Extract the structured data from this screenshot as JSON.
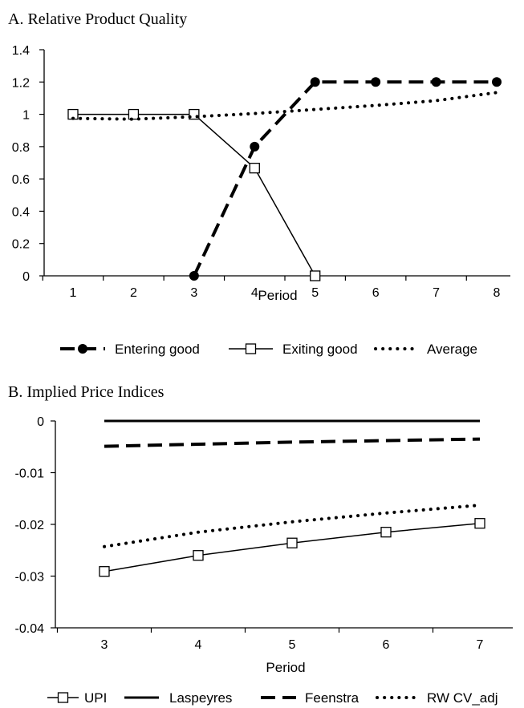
{
  "chart_data": [
    {
      "type": "line",
      "title": "A.  Relative Product Quality",
      "xlabel": "Period",
      "ylabel": "",
      "x": [
        1,
        2,
        3,
        4,
        5,
        6,
        7,
        8
      ],
      "x_ticks": [
        "1",
        "2",
        "3",
        "4",
        "5",
        "6",
        "7",
        "8"
      ],
      "ylim": [
        0,
        1.4
      ],
      "y_ticks": [
        "0",
        "0.2",
        "0.4",
        "0.6",
        "0.8",
        "1",
        "1.2",
        "1.4"
      ],
      "grid": false,
      "legend_position": "bottom",
      "series": [
        {
          "name": "Entering good",
          "x": [
            3,
            4,
            5,
            6,
            7,
            8
          ],
          "values": [
            0,
            0.8,
            1.2,
            1.2,
            1.2,
            1.2
          ],
          "style": "dashed-filled-circle",
          "color": "#000000"
        },
        {
          "name": "Exiting good",
          "x": [
            1,
            2,
            3,
            4,
            5
          ],
          "values": [
            1.0,
            1.0,
            1.0,
            0.667,
            0.0
          ],
          "style": "solid-open-square",
          "color": "#000000"
        },
        {
          "name": "Average",
          "x": [
            1,
            2,
            3,
            4,
            5,
            6,
            7,
            8
          ],
          "values": [
            0.975,
            0.97,
            0.985,
            1.005,
            1.03,
            1.055,
            1.085,
            1.135
          ],
          "style": "dotted",
          "color": "#000000"
        }
      ]
    },
    {
      "type": "line",
      "title": "B.  Implied Price Indices",
      "xlabel": "Period",
      "ylabel": "",
      "x": [
        3,
        4,
        5,
        6,
        7
      ],
      "x_ticks": [
        "3",
        "4",
        "5",
        "6",
        "7"
      ],
      "ylim": [
        -0.04,
        0
      ],
      "y_ticks": [
        "-0.04",
        "-0.03",
        "-0.02",
        "-0.01",
        "0"
      ],
      "grid": false,
      "legend_position": "bottom",
      "series": [
        {
          "name": "UPI",
          "x": [
            3,
            4,
            5,
            6,
            7
          ],
          "values": [
            -0.0291,
            -0.026,
            -0.0236,
            -0.0215,
            -0.0198
          ],
          "style": "solid-open-square",
          "color": "#000000"
        },
        {
          "name": "Laspeyres",
          "x": [
            3,
            4,
            5,
            6,
            7
          ],
          "values": [
            0.0,
            0.0,
            0.0,
            0.0,
            0.0
          ],
          "style": "solid-thick",
          "color": "#000000"
        },
        {
          "name": "Feenstra",
          "x": [
            3,
            4,
            5,
            6,
            7
          ],
          "values": [
            -0.0049,
            -0.0045,
            -0.0041,
            -0.0038,
            -0.0035
          ],
          "style": "dashed",
          "color": "#000000"
        },
        {
          "name": "RW CV_adj",
          "x": [
            3,
            4,
            5,
            6,
            7
          ],
          "values": [
            -0.0243,
            -0.0215,
            -0.0195,
            -0.0178,
            -0.0163
          ],
          "style": "dotted",
          "color": "#000000"
        }
      ]
    }
  ]
}
